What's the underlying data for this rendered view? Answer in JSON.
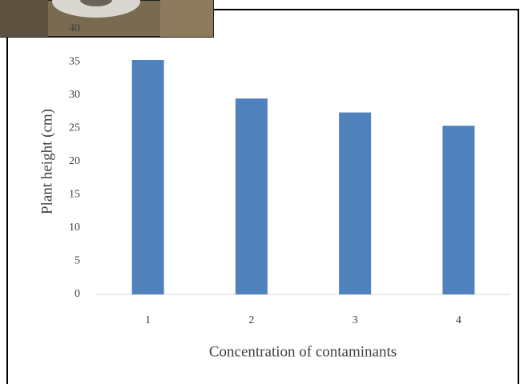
{
  "chart_data": {
    "type": "bar",
    "categories": [
      "1",
      "2",
      "3",
      "4"
    ],
    "values": [
      35.3,
      29.5,
      27.4,
      25.4
    ],
    "color": "#4f81bd",
    "ylim": [
      0,
      40
    ],
    "yticks": [
      0,
      5,
      10,
      15,
      20,
      25,
      30,
      35,
      40
    ],
    "x_label": "Concentration of contaminants",
    "y_label": "Plant height (cm)"
  }
}
